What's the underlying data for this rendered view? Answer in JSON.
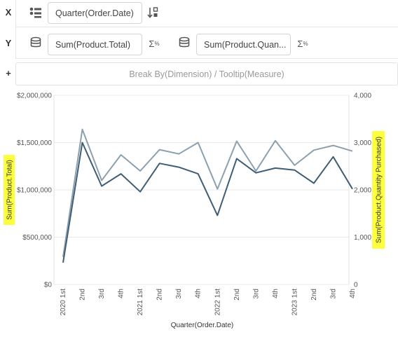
{
  "shelves": {
    "x": {
      "axis_letter": "X",
      "field_icon": "dimension-list-icon",
      "field_label": "Quarter(Order.Date)",
      "sort_icon": "sort-icon"
    },
    "y": {
      "axis_letter": "Y",
      "field1_icon": "measure-database-icon",
      "field1_label": "Sum(Product.Total)",
      "field1_agg_icon": "sigma-percent-icon",
      "field2_icon": "measure-database-icon",
      "field2_label": "Sum(Product.Quan...",
      "field2_agg_icon": "sigma-percent-icon"
    },
    "extra": {
      "plus_label": "+",
      "placeholder": "Break By(Dimension) / Tooltip(Measure)"
    }
  },
  "colors": {
    "series_total": "#3f5e76",
    "series_quantity": "#8da0ae",
    "highlight": "#fbff3c",
    "grid": "#e8e8e8"
  },
  "chart_data": {
    "type": "line",
    "title": "",
    "xlabel": "Quarter(Order.Date)",
    "ylabel_left": "Sum(Product.Total)",
    "ylabel_right": "Sum(Product.Quantity Purchased)",
    "categories": [
      "2020 1st",
      "2nd",
      "3rd",
      "4th",
      "2021 1st",
      "2nd",
      "3rd",
      "4th",
      "2022 1st",
      "2nd",
      "3rd",
      "4th",
      "2023 1st",
      "2nd",
      "3rd",
      "4th"
    ],
    "ylim_left": [
      0,
      2000000
    ],
    "ylim_right": [
      0,
      4000
    ],
    "yticks_left": [
      "$0",
      "$500,000",
      "$1,000,000",
      "$1,500,000",
      "$2,000,000"
    ],
    "yticks_right": [
      "0",
      "1,000",
      "2,000",
      "3,000",
      "4,000"
    ],
    "series": [
      {
        "name": "Sum(Product.Total)",
        "axis": "left",
        "values": [
          230000,
          1500000,
          1040000,
          1170000,
          980000,
          1280000,
          1240000,
          1170000,
          730000,
          1330000,
          1180000,
          1230000,
          1210000,
          1070000,
          1350000,
          1010000
        ]
      },
      {
        "name": "Sum(Product.Quantity Purchased)",
        "axis": "right",
        "values": [
          580,
          3280,
          2200,
          2740,
          2400,
          2850,
          2760,
          3000,
          2020,
          3030,
          2400,
          3040,
          2520,
          2840,
          2940,
          2820
        ]
      }
    ],
    "grid": true
  }
}
